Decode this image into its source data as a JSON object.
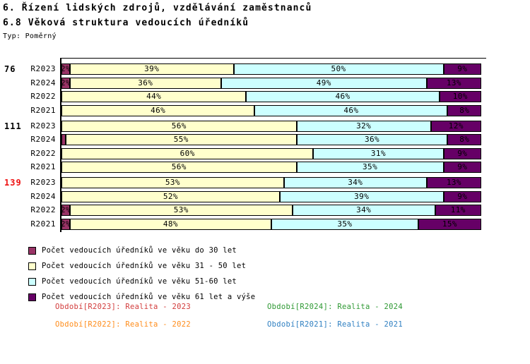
{
  "header": {
    "title": "6. Řízení lidských zdrojů, vzdělávání zaměstnanců",
    "subtitle": "6.8 Věková struktura vedoucích úředníků",
    "type_label": "Typ: Poměrný"
  },
  "chart_data": {
    "type": "bar",
    "orientation": "horizontal",
    "stacked": true,
    "value_unit": "%",
    "xlim": [
      0,
      100
    ],
    "grid": false,
    "legend_position": "bottom-left",
    "series": [
      {
        "key": "age-under-30",
        "label": "Počet vedoucích úředníků ve věku do 30 let",
        "color": "#993366"
      },
      {
        "key": "age-31-50",
        "label": "Počet vedoucích úředníků ve věku 31 - 50 let",
        "color": "#ffffcc"
      },
      {
        "key": "age-51-60",
        "label": "Počet vedoucích úředníků ve věku 51-60 let",
        "color": "#ccffff"
      },
      {
        "key": "age-61-plus",
        "label": "Počet vedoucích úředníků ve věku 61 let a výše",
        "color": "#660066"
      }
    ],
    "groups": [
      {
        "label": "76",
        "label_color": "#000000",
        "rows": [
          {
            "period": "R2023",
            "values": [
              2,
              39,
              50,
              9
            ]
          },
          {
            "period": "R2024",
            "values": [
              2,
              36,
              49,
              13
            ]
          },
          {
            "period": "R2022",
            "values": [
              0,
              44,
              46,
              10
            ]
          },
          {
            "period": "R2021",
            "values": [
              0,
              46,
              46,
              8
            ]
          }
        ]
      },
      {
        "label": "111",
        "label_color": "#000000",
        "rows": [
          {
            "period": "R2023",
            "values": [
              0,
              56,
              32,
              12
            ]
          },
          {
            "period": "R2024",
            "values": [
              1,
              55,
              36,
              8
            ]
          },
          {
            "period": "R2022",
            "values": [
              0,
              60,
              31,
              9
            ]
          },
          {
            "period": "R2021",
            "values": [
              0,
              56,
              35,
              9
            ]
          }
        ]
      },
      {
        "label": "139",
        "label_color": "#ee1111",
        "rows": [
          {
            "period": "R2023",
            "values": [
              0,
              53,
              34,
              13
            ]
          },
          {
            "period": "R2024",
            "values": [
              0,
              52,
              39,
              9
            ]
          },
          {
            "period": "R2022",
            "values": [
              2,
              53,
              34,
              11
            ]
          },
          {
            "period": "R2021",
            "values": [
              2,
              48,
              35,
              15
            ]
          }
        ]
      }
    ]
  },
  "period_notes": [
    {
      "label": "Období[R2023]: Realita - 2023",
      "color": "#d23b3b"
    },
    {
      "label": "Období[R2024]: Realita - 2024",
      "color": "#2e9933"
    },
    {
      "label": "Období[R2022]: Realita - 2022",
      "color": "#ff8c1a"
    },
    {
      "label": "Období[R2021]: Realita - 2021",
      "color": "#2e7fc1"
    }
  ]
}
